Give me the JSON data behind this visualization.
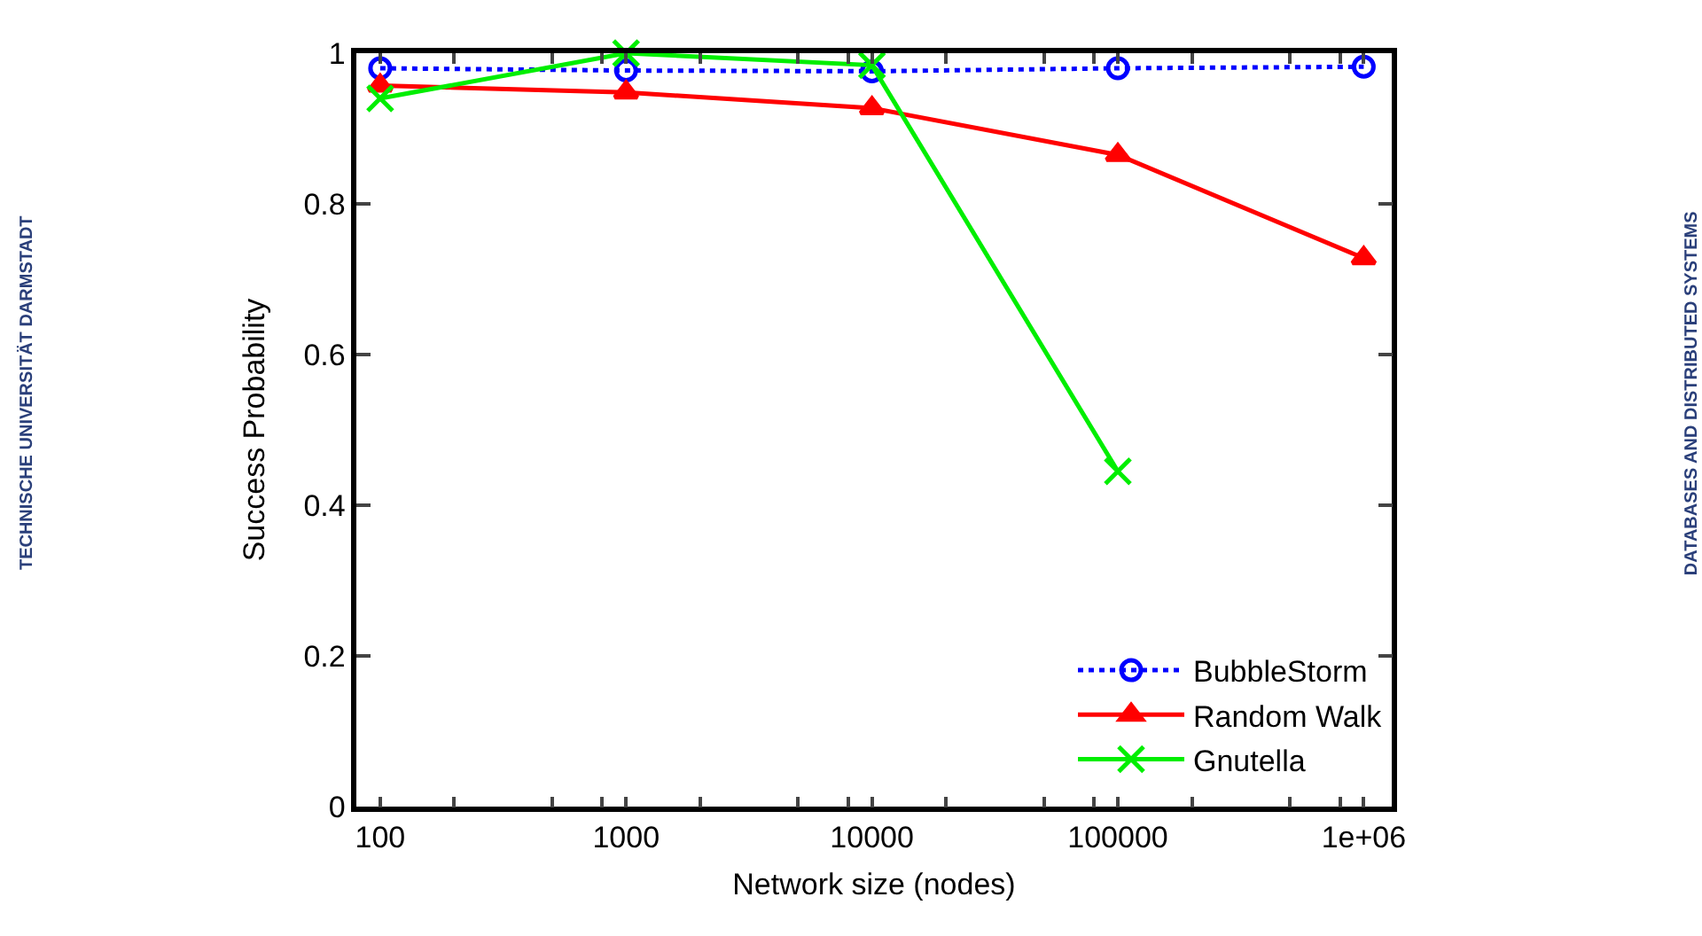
{
  "chart_data": {
    "type": "line",
    "xlabel": "Network size (nodes)",
    "ylabel": "Success Probability",
    "x": [
      100,
      1000,
      10000,
      100000,
      1000000
    ],
    "log": "x",
    "xlim": [
      80,
      1300000
    ],
    "xticks": [
      100,
      {
        "value": 200,
        "label": null
      },
      {
        "value": 500,
        "label": null
      },
      {
        "value": 800,
        "label": null
      },
      1000,
      {
        "value": 2000,
        "label": null
      },
      {
        "value": 5000,
        "label": null
      },
      {
        "value": 8000,
        "label": null
      },
      10000,
      {
        "value": 20000,
        "label": null
      },
      {
        "value": 50000,
        "label": null
      },
      {
        "value": 80000,
        "label": null
      },
      100000,
      {
        "value": 200000,
        "label": null
      },
      {
        "value": 500000,
        "label": null
      },
      {
        "value": 800000,
        "label": null
      },
      {
        "value": 1000000,
        "label": "1e+06"
      }
    ],
    "ylim": [
      0,
      1
    ],
    "yticks": [
      0,
      0.2,
      0.4,
      0.6,
      0.8,
      1
    ],
    "grid": false,
    "legend": "bottom right",
    "series": [
      {
        "name": "BubbleStorm",
        "color": "#0000ff",
        "marker": "circle",
        "line_style": "dotted",
        "values": [
          0.98,
          0.977,
          0.976,
          0.98,
          0.982
        ]
      },
      {
        "name": "Random Walk",
        "color": "#ff0000",
        "marker": "triangle",
        "line_style": "solid",
        "values": [
          0.957,
          0.948,
          0.927,
          0.865,
          0.728
        ]
      },
      {
        "name": "Gnutella",
        "color": "#00ee00",
        "marker": "cross",
        "line_style": "solid",
        "values": [
          0.94,
          1.0,
          0.984,
          0.445,
          null
        ]
      }
    ],
    "annotations": [
      "TECHNISCHE UNIVERSITÄT DARMSTADT",
      "DATABASES AND DISTRIBUTED SYSTEMS"
    ]
  }
}
